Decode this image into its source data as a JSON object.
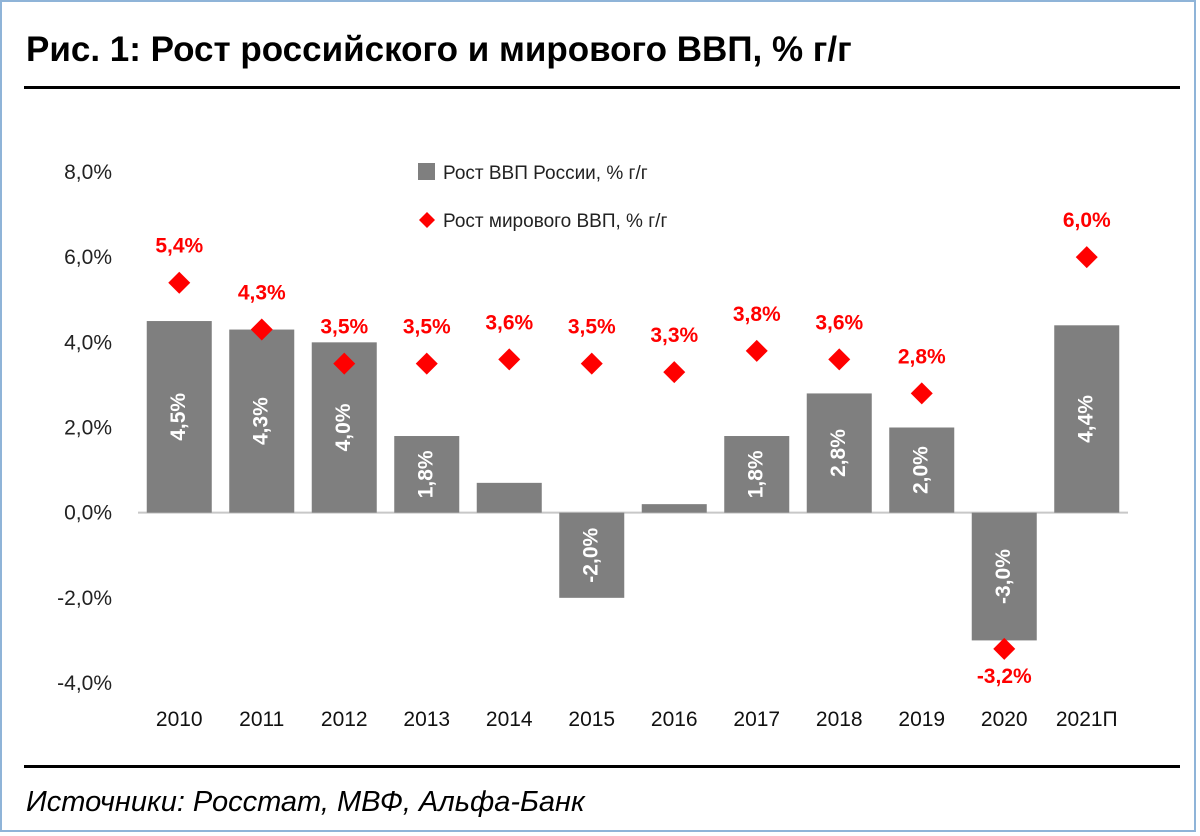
{
  "header": {
    "title": "Рис. 1: Рост российского и мирового ВВП, % г/г"
  },
  "footer": {
    "source": "Источники: Росстат, МВФ, Альфа-Банк"
  },
  "colors": {
    "bar": "#7f7f7f",
    "marker": "#ff0000",
    "axis": "#c8c8c8"
  },
  "chart_data": {
    "type": "bar",
    "categories": [
      "2010",
      "2011",
      "2012",
      "2013",
      "2014",
      "2015",
      "2016",
      "2017",
      "2018",
      "2019",
      "2020",
      "2021П"
    ],
    "ylim": [
      -4.0,
      8.0
    ],
    "yticks": [
      -4,
      -2,
      0,
      2,
      4,
      6,
      8
    ],
    "ytick_labels": [
      "-4,0%",
      "-2,0%",
      "0,0%",
      "2,0%",
      "4,0%",
      "6,0%",
      "8,0%"
    ],
    "grid": false,
    "legend_position": "top-center",
    "series": [
      {
        "name": "Рост ВВП России, % г/г",
        "kind": "bar",
        "values": [
          4.5,
          4.3,
          4.0,
          1.8,
          0.7,
          -2.0,
          0.2,
          1.8,
          2.8,
          2.0,
          -3.0,
          4.4
        ],
        "labels": [
          "4,5%",
          "4,3%",
          "4,0%",
          "1,8%",
          "",
          "-2,0%",
          "",
          "1,8%",
          "2,8%",
          "2,0%",
          "-3,0%",
          "4,4%"
        ]
      },
      {
        "name": "Рост мирового ВВП, % г/г",
        "kind": "marker",
        "values": [
          5.4,
          4.3,
          3.5,
          3.5,
          3.6,
          3.5,
          3.3,
          3.8,
          3.6,
          2.8,
          -3.2,
          6.0
        ],
        "labels": [
          "5,4%",
          "4,3%",
          "3,5%",
          "3,5%",
          "3,6%",
          "3,5%",
          "3,3%",
          "3,8%",
          "3,6%",
          "2,8%",
          "-3,2%",
          "6,0%"
        ]
      }
    ]
  }
}
